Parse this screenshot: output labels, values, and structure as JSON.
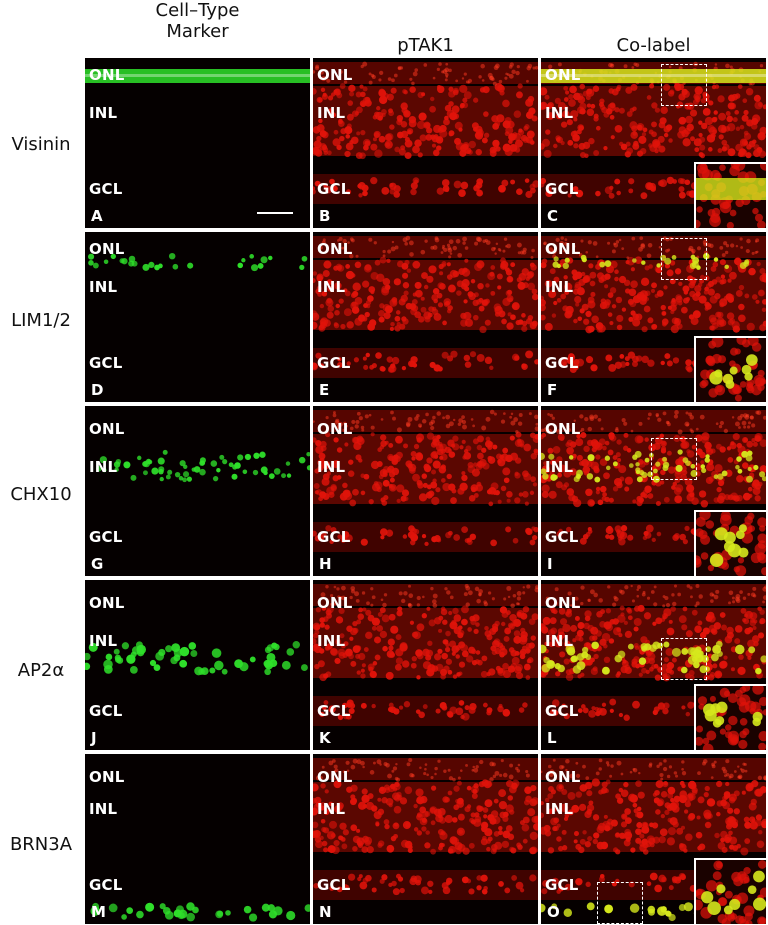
{
  "columns": {
    "marker": "Cell–Type\nMarker",
    "ptak1": "pTAK1",
    "colabel": "Co-label"
  },
  "rows": [
    {
      "name": "Visinin",
      "panels": [
        "A",
        "B",
        "C"
      ],
      "layers": [
        "ONL",
        "INL",
        "GCL"
      ]
    },
    {
      "name": "LIM1/2",
      "panels": [
        "D",
        "E",
        "F"
      ],
      "layers": [
        "ONL",
        "INL",
        "GCL"
      ]
    },
    {
      "name": "CHX10",
      "panels": [
        "G",
        "H",
        "I"
      ],
      "layers": [
        "ONL",
        "INL",
        "GCL"
      ]
    },
    {
      "name": "AP2α",
      "panels": [
        "J",
        "K",
        "L"
      ],
      "layers": [
        "ONL",
        "INL",
        "GCL"
      ]
    },
    {
      "name": "BRN3A",
      "panels": [
        "M",
        "N",
        "O"
      ],
      "layers": [
        "ONL",
        "INL",
        "GCL"
      ]
    }
  ],
  "colors": {
    "green": "#2fe02a",
    "red": "#e0130a",
    "yellow": "#d6e81c",
    "background": "#050000"
  }
}
